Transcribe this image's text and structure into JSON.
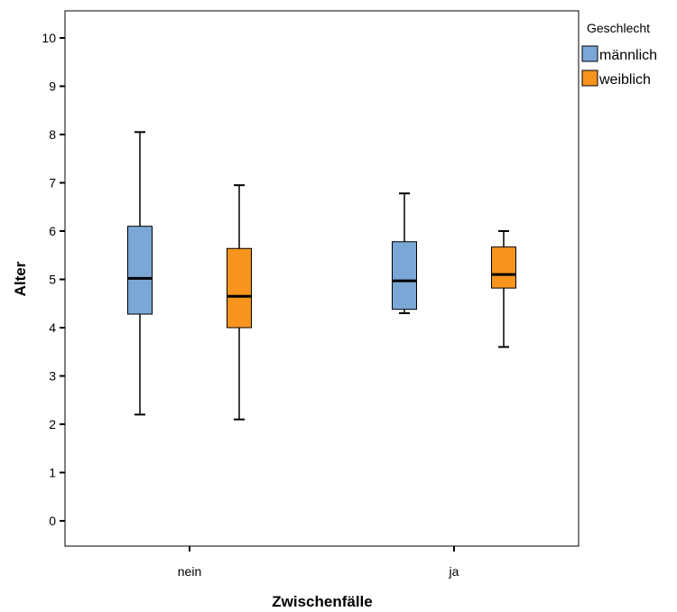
{
  "chart_data": {
    "type": "boxplot",
    "xlabel": "Zwischenfälle",
    "ylabel": "Alter",
    "ylim": [
      -0.5,
      10.6
    ],
    "yticks": [
      0,
      1,
      2,
      3,
      4,
      5,
      6,
      7,
      8,
      9,
      10
    ],
    "categories": [
      "nein",
      "ja"
    ],
    "legend": {
      "title": "Geschlecht",
      "position": "right"
    },
    "series": [
      {
        "name": "männlich",
        "color": "#7BA7D7",
        "boxes": [
          {
            "category": "nein",
            "min": 2.2,
            "q1": 4.28,
            "median": 5.02,
            "q3": 6.1,
            "max": 8.05
          },
          {
            "category": "ja",
            "min": 4.3,
            "q1": 4.38,
            "median": 4.97,
            "q3": 5.78,
            "max": 6.78
          }
        ]
      },
      {
        "name": "weiblich",
        "color": "#F7941D",
        "boxes": [
          {
            "category": "nein",
            "min": 2.1,
            "q1": 4.0,
            "median": 4.65,
            "q3": 5.64,
            "max": 6.95
          },
          {
            "category": "ja",
            "min": 3.6,
            "q1": 4.82,
            "median": 5.1,
            "q3": 5.67,
            "max": 6.0
          }
        ]
      }
    ],
    "grid": false
  }
}
